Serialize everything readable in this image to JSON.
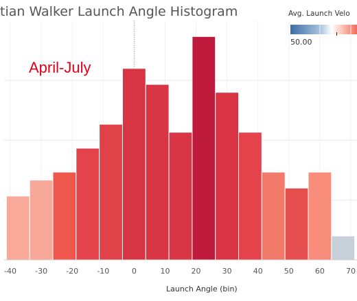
{
  "chart_data": {
    "type": "bar",
    "title": "tian Walker Launch Angle Histogram",
    "xlabel": "Launch Angle (bin)",
    "ylabel": "",
    "annotation": "April-July",
    "legend": {
      "title": "Avg. Launch Velo",
      "value_label": "50.00",
      "colors": [
        "#3c6ea8",
        "#ffffff",
        "#f26a59"
      ]
    },
    "x_ticks": [
      -40,
      -30,
      -20,
      -10,
      0,
      10,
      20,
      30,
      40,
      50,
      60,
      70
    ],
    "x_range": [
      -42,
      72
    ],
    "bin_width": 7.5,
    "ylim": [
      0,
      15
    ],
    "grid": true,
    "bins": [
      {
        "x": -37.5,
        "value": 4,
        "color": "#f9a99a"
      },
      {
        "x": -30,
        "value": 5,
        "color": "#f8a898"
      },
      {
        "x": -22.5,
        "value": 5.5,
        "color": "#ef574d"
      },
      {
        "x": -15,
        "value": 7,
        "color": "#e4434b"
      },
      {
        "x": -7.5,
        "value": 8.5,
        "color": "#e0424a"
      },
      {
        "x": 0,
        "value": 12,
        "color": "#d73444"
      },
      {
        "x": 7.5,
        "value": 11,
        "color": "#d93645"
      },
      {
        "x": 15,
        "value": 8,
        "color": "#d93645"
      },
      {
        "x": 22.5,
        "value": 14,
        "color": "#be1b3c"
      },
      {
        "x": 30,
        "value": 10.5,
        "color": "#d83443"
      },
      {
        "x": 37.5,
        "value": 8,
        "color": "#e4434b"
      },
      {
        "x": 45,
        "value": 5.5,
        "color": "#f17a68"
      },
      {
        "x": 52.5,
        "value": 4.5,
        "color": "#e64f4f"
      },
      {
        "x": 60,
        "value": 5.5,
        "color": "#f98d7c"
      },
      {
        "x": 67.5,
        "value": 1.5,
        "color": "#c7d0d8"
      }
    ]
  }
}
